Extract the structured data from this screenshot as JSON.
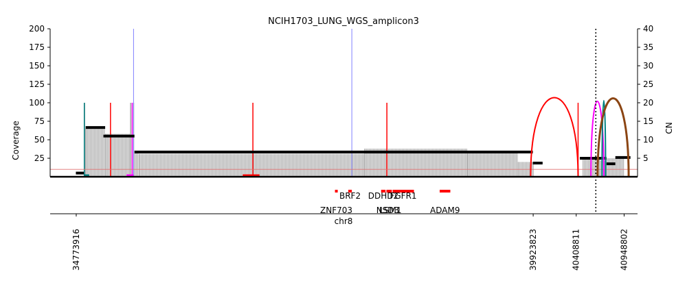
{
  "chart_data": {
    "type": "bar",
    "title": "NCIH1703_LUNG_WGS_amplicon3",
    "ylabel": "Coverage",
    "ylabel_right": "CN",
    "xlabel": "chr8",
    "ylim": [
      0,
      200
    ],
    "ylim_right": [
      0,
      40
    ],
    "xlim": [
      34480000,
      41100000
    ],
    "yticks": [
      25,
      50,
      75,
      100,
      125,
      150,
      175,
      200
    ],
    "yticks_right": [
      5,
      10,
      15,
      20,
      25,
      30,
      35,
      40
    ],
    "segment_ticks": [
      {
        "pos": 34773916,
        "label": "34773916"
      },
      {
        "pos": 39923823,
        "label": "39923823"
      },
      {
        "pos": 40408811,
        "label": "40408811"
      },
      {
        "pos": 40948802,
        "label": "40948802"
      }
    ],
    "breakpoint_line": 40630000,
    "threshold_cn": 2,
    "coverage_profile": [
      {
        "start": 34860000,
        "end": 34875000,
        "value": 100
      },
      {
        "start": 34875000,
        "end": 35100000,
        "value": 65
      },
      {
        "start": 35100000,
        "end": 35380000,
        "value": 58
      },
      {
        "start": 35380000,
        "end": 35430000,
        "value": 100
      },
      {
        "start": 35430000,
        "end": 35480000,
        "value": 35
      },
      {
        "start": 35480000,
        "end": 38020000,
        "value": 31
      },
      {
        "start": 38020000,
        "end": 39180000,
        "value": 38
      },
      {
        "start": 39180000,
        "end": 39750000,
        "value": 35
      },
      {
        "start": 39750000,
        "end": 39930000,
        "value": 20
      },
      {
        "start": 40480000,
        "end": 40680000,
        "value": 25
      },
      {
        "start": 40680000,
        "end": 40750000,
        "value": 22
      },
      {
        "start": 40750000,
        "end": 40950000,
        "value": 25
      }
    ],
    "cn_segments": [
      {
        "start": 34770000,
        "end": 34860000,
        "cn": 1
      },
      {
        "start": 34880000,
        "end": 35100000,
        "cn": 13.3
      },
      {
        "start": 35080000,
        "end": 35430000,
        "cn": 11
      },
      {
        "start": 35430000,
        "end": 39920000,
        "cn": 6.7
      },
      {
        "start": 39920000,
        "end": 40030000,
        "cn": 3.7
      },
      {
        "start": 40450000,
        "end": 40750000,
        "cn": 5
      },
      {
        "start": 40750000,
        "end": 40850000,
        "cn": 3.5
      },
      {
        "start": 40850000,
        "end": 41020000,
        "cn": 5.2
      }
    ],
    "vertical_lines": [
      {
        "pos": 34865000,
        "top": 100,
        "color": "#008080"
      },
      {
        "pos": 35160000,
        "top": 100,
        "color": "#ff0000"
      },
      {
        "pos": 35405000,
        "top": 100,
        "color": "#ff00ff"
      },
      {
        "pos": 35420000,
        "top": 200,
        "color": "#8080ff"
      },
      {
        "pos": 36765000,
        "top": 100,
        "color": "#ff0000"
      },
      {
        "pos": 37880000,
        "top": 200,
        "color": "#8080ff"
      },
      {
        "pos": 38275000,
        "top": 100,
        "color": "#ff0000"
      },
      {
        "pos": 40430000,
        "top": 100,
        "color": "#ff0000"
      }
    ],
    "sv_arcs": [
      {
        "start": 39895000,
        "end": 40430000,
        "height": 107,
        "color": "#ff0000"
      },
      {
        "start": 40575000,
        "end": 40720000,
        "height": 102,
        "color": "#ff00ff"
      },
      {
        "start": 40700000,
        "end": 40740000,
        "height": 103,
        "color": "#008080"
      },
      {
        "start": 40650000,
        "end": 41000000,
        "height": 106,
        "color": "#8b4513"
      }
    ],
    "baseline_marks": [
      {
        "start": 34860000,
        "end": 34920000,
        "color": "#008080"
      },
      {
        "start": 35340000,
        "end": 35420000,
        "color": "#ff00ff"
      },
      {
        "start": 36650000,
        "end": 36840000,
        "color": "#ff0000"
      }
    ],
    "genes": [
      {
        "name": "BRF2",
        "start": 37840000,
        "end": 37880000,
        "row": 1
      },
      {
        "name": "ZNF703",
        "start": 37690000,
        "end": 37720000,
        "row": 2
      },
      {
        "name": "DDHD2",
        "start": 38210000,
        "end": 38260000,
        "row": 1
      },
      {
        "name": "LSM1",
        "start": 38300000,
        "end": 38330000,
        "row": 2
      },
      {
        "name": "FGFR1",
        "start": 38340000,
        "end": 38580000,
        "row": 1
      },
      {
        "name": "NSD3",
        "start": 38270000,
        "end": 38300000,
        "row": 2
      },
      {
        "name": "ADAM9",
        "start": 38870000,
        "end": 38990000,
        "row": 2
      }
    ]
  }
}
